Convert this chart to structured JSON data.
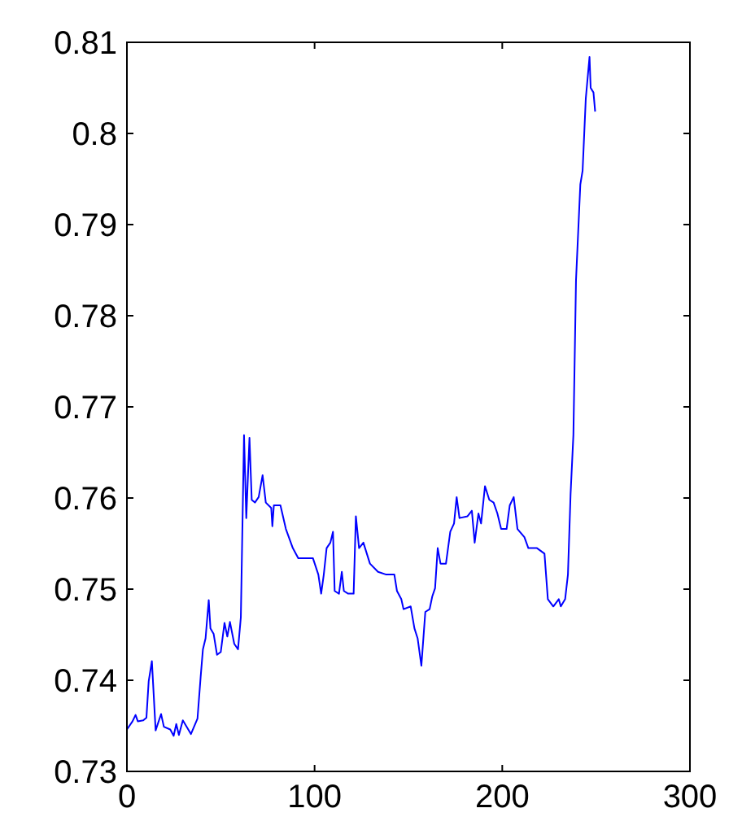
{
  "chart_data": {
    "type": "line",
    "xlim": [
      0,
      300
    ],
    "ylim": [
      0.73,
      0.81
    ],
    "xticks": [
      0,
      100,
      200,
      300
    ],
    "yticks": [
      0.73,
      0.74,
      0.75,
      0.76,
      0.77,
      0.78,
      0.79,
      0.8,
      0.81
    ],
    "grid": false,
    "series": [
      {
        "color": "#0000ff",
        "x": [
          0,
          3,
          4.6,
          5.8,
          8.7,
          10.4,
          11.6,
          13.3,
          15.3,
          18.2,
          19.7,
          23.1,
          24.9,
          26.3,
          27.7,
          29.8,
          34.1,
          37.6,
          39.3,
          40.5,
          41.9,
          43.6,
          44.5,
          46.2,
          48,
          50,
          52,
          53.5,
          54.9,
          57.2,
          59.2,
          60.7,
          62.4,
          63.6,
          65.3,
          66.5,
          68.2,
          70.2,
          72.3,
          74,
          76.9,
          77.5,
          78.3,
          81.8,
          84.7,
          88.4,
          91.3,
          94.8,
          99.1,
          102,
          103.5,
          104.9,
          106.4,
          108.4,
          109.8,
          110.7,
          113,
          114.5,
          115.6,
          117.9,
          120.8,
          122,
          123.7,
          126,
          129.5,
          133.8,
          138.2,
          142.5,
          143.9,
          146.2,
          147.4,
          151.2,
          153.2,
          154.9,
          156.9,
          159,
          161.3,
          162.7,
          164.2,
          165.6,
          167.1,
          170,
          172.3,
          174.3,
          175.7,
          177.2,
          181.5,
          183.8,
          185.3,
          187.3,
          188.7,
          190.8,
          193.1,
          195.4,
          197.4,
          199.4,
          202.3,
          204,
          206.1,
          208.1,
          211.8,
          213.9,
          218.5,
          222.5,
          224.3,
          227.2,
          230.1,
          231.2,
          233.5,
          235,
          236.4,
          237.9,
          239.3,
          241.6,
          242.8,
          244.5,
          246.5,
          247.1,
          248.6,
          249.5
        ],
        "values": [
          0.7346,
          0.7355,
          0.7362,
          0.7355,
          0.7356,
          0.7359,
          0.7399,
          0.7421,
          0.7345,
          0.7363,
          0.7349,
          0.7346,
          0.7339,
          0.7352,
          0.734,
          0.7356,
          0.7341,
          0.7358,
          0.7404,
          0.7434,
          0.7446,
          0.7488,
          0.7457,
          0.7451,
          0.7428,
          0.7431,
          0.7463,
          0.7448,
          0.7464,
          0.744,
          0.7434,
          0.7469,
          0.7669,
          0.7578,
          0.7666,
          0.7598,
          0.7595,
          0.7601,
          0.7625,
          0.7595,
          0.7589,
          0.7569,
          0.7592,
          0.7592,
          0.7566,
          0.7545,
          0.7534,
          0.7534,
          0.7534,
          0.7516,
          0.7495,
          0.7516,
          0.7545,
          0.7551,
          0.7563,
          0.7498,
          0.7495,
          0.7519,
          0.7498,
          0.7495,
          0.7495,
          0.758,
          0.7545,
          0.7551,
          0.7528,
          0.7519,
          0.7516,
          0.7516,
          0.7498,
          0.7489,
          0.7478,
          0.7481,
          0.7457,
          0.7446,
          0.7416,
          0.7475,
          0.7478,
          0.7492,
          0.7501,
          0.7545,
          0.7528,
          0.7528,
          0.7563,
          0.7572,
          0.7601,
          0.7578,
          0.758,
          0.7586,
          0.7551,
          0.7583,
          0.7572,
          0.7613,
          0.7598,
          0.7595,
          0.7583,
          0.7566,
          0.7566,
          0.7592,
          0.7601,
          0.7566,
          0.7557,
          0.7545,
          0.7545,
          0.7539,
          0.7489,
          0.7481,
          0.7489,
          0.7481,
          0.7489,
          0.7516,
          0.7604,
          0.7669,
          0.7839,
          0.7944,
          0.7959,
          0.8038,
          0.8084,
          0.805,
          0.8045,
          0.8024
        ]
      }
    ]
  }
}
